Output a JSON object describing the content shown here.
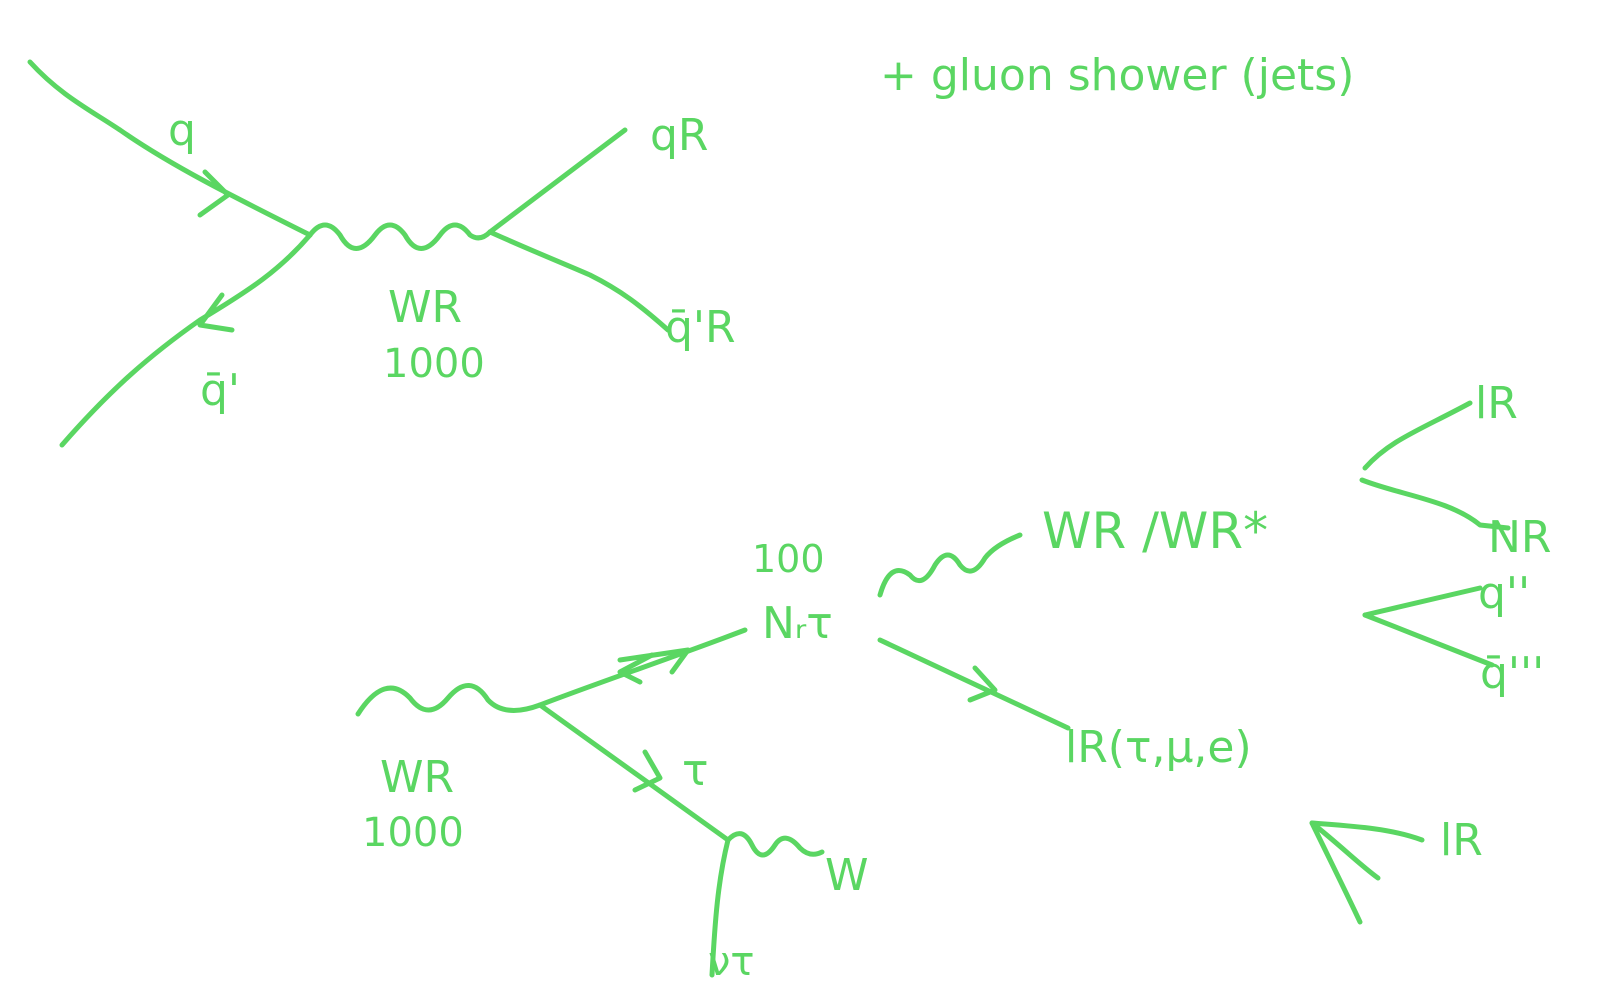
{
  "annotation": "+ gluon shower (jets)",
  "top_diagram": {
    "incoming_quark": "q",
    "incoming_antiquark": "q̄'",
    "boson": "WR",
    "boson_mass": "1000",
    "outgoing_quark": "qR",
    "outgoing_antiquark": "q̄'R"
  },
  "bottom_diagram": {
    "boson": "WR",
    "boson_mass": "1000",
    "neutrino": "Nᵣτ",
    "neutrino_mass": "100",
    "tau": "τ",
    "w_from_tau": "W",
    "nu_from_tau": "ντ",
    "virtual_boson": "WR /WR*",
    "lepton": "lR(τ,μ,e)",
    "branch_lepton": "lR",
    "branch_neutrino": "NR",
    "branch_quark": "q''",
    "branch_antiquark": "q̄'''",
    "arrow_target": "lR"
  },
  "colors": {
    "ink": "#5ad662",
    "background": "#ffffff"
  }
}
